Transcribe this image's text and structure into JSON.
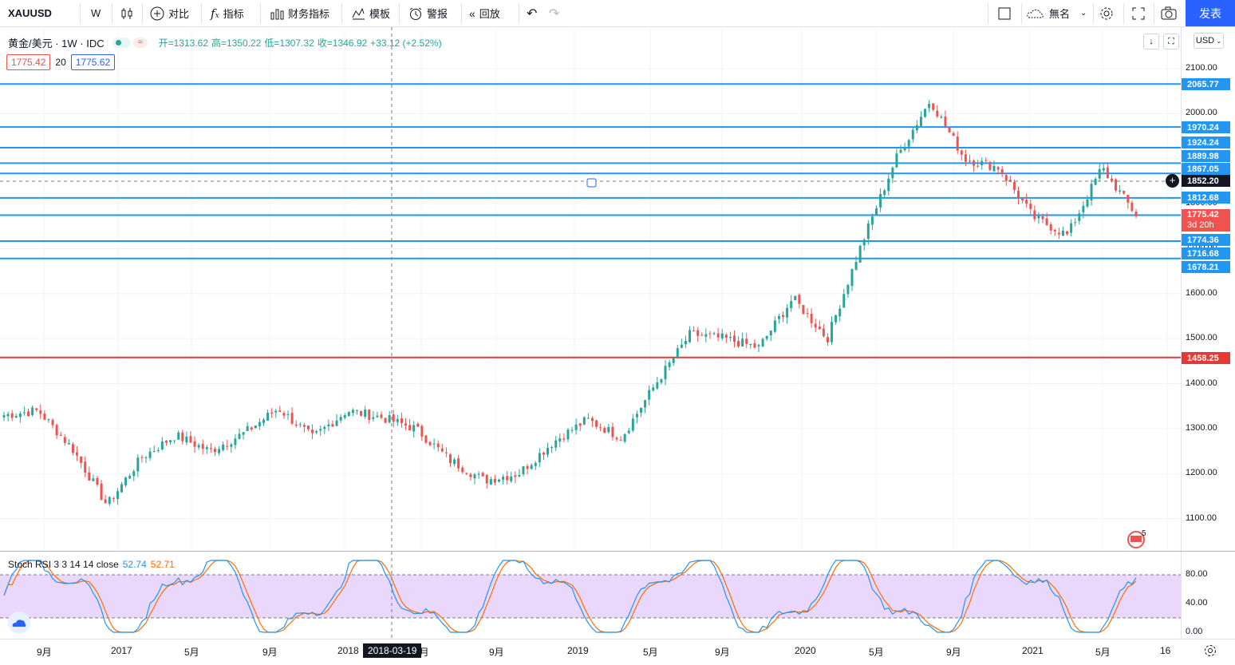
{
  "toolbar": {
    "symbol": "XAUUSD",
    "interval": "W",
    "compare_label": "对比",
    "indicators_label": "指标",
    "financials_label": "财务指标",
    "templates_label": "模板",
    "alert_label": "警报",
    "replay_label": "回放",
    "layout_name": "無名",
    "publish_label": "发表"
  },
  "legend": {
    "title": "黄金/美元 · 1W · IDC",
    "open": "开=1313.62",
    "high": "高=1350.22",
    "low": "低=1307.32",
    "close": "收=1346.92",
    "change": "+33.12 (+2.52%)",
    "bid": "1775.42",
    "spread": "20",
    "ask": "1775.62"
  },
  "currency": "USD",
  "price_ticks": [
    "2100.00",
    "2000.00",
    "1900.00",
    "1800.00",
    "1700.00",
    "1600.00",
    "1500.00",
    "1400.00",
    "1300.00",
    "1200.00",
    "1100.00"
  ],
  "hlines": [
    {
      "label": "2065.77",
      "color": "#2196f3"
    },
    {
      "label": "1970.24",
      "color": "#2196f3"
    },
    {
      "label": "1924.24",
      "color": "#2196f3"
    },
    {
      "label": "1889.98",
      "color": "#2196f3"
    },
    {
      "label": "1867.05",
      "color": "#2196f3"
    },
    {
      "label": "1812.68",
      "color": "#2196f3"
    },
    {
      "label": "1774.36",
      "color": "#2196f3"
    },
    {
      "label": "1716.68",
      "color": "#2196f3"
    },
    {
      "label": "1678.21",
      "color": "#2196f3"
    },
    {
      "label": "1458.25",
      "color": "#e53935"
    }
  ],
  "crosshair_price": "1852.20",
  "last_price": {
    "value": "1775.42",
    "countdown": "3d 20h",
    "color": "#ef5350"
  },
  "rsi": {
    "title": "Stoch RSI 3 3 14 14 close",
    "k": "52.74",
    "d": "52.71",
    "k_color": "#2196f3",
    "d_color": "#ff6d00",
    "band_color": "#e1c8fb",
    "ticks": [
      "80.00",
      "40.00",
      "0.00"
    ]
  },
  "time_labels": [
    "9月",
    "2017",
    "5月",
    "9月",
    "2018",
    "5月",
    "9月",
    "2019",
    "5月",
    "9月",
    "2020",
    "5月",
    "9月",
    "2021",
    "5月",
    "16"
  ],
  "crosshair_date": "2018-03-19",
  "events_badge": "5",
  "chart_data": {
    "type": "candlestick",
    "title": "黄金/美元 · 1W · IDC",
    "ylim": [
      1050,
      2150
    ],
    "series": [
      {
        "name": "XAUUSD",
        "values": [
          {
            "x": "2016-06",
            "close": 1330
          },
          {
            "x": "2016-08",
            "close": 1340
          },
          {
            "x": "2016-10",
            "close": 1255
          },
          {
            "x": "2016-12",
            "close": 1130
          },
          {
            "x": "2017-02",
            "close": 1235
          },
          {
            "x": "2017-04",
            "close": 1285
          },
          {
            "x": "2017-06",
            "close": 1250
          },
          {
            "x": "2017-08",
            "close": 1290
          },
          {
            "x": "2017-09",
            "close": 1345
          },
          {
            "x": "2017-11",
            "close": 1280
          },
          {
            "x": "2018-01",
            "close": 1340
          },
          {
            "x": "2018-03",
            "close": 1325
          },
          {
            "x": "2018-05",
            "close": 1300
          },
          {
            "x": "2018-07",
            "close": 1230
          },
          {
            "x": "2018-08",
            "close": 1185
          },
          {
            "x": "2018-10",
            "close": 1200
          },
          {
            "x": "2018-12",
            "close": 1270
          },
          {
            "x": "2019-02",
            "close": 1320
          },
          {
            "x": "2019-04",
            "close": 1280
          },
          {
            "x": "2019-06",
            "close": 1400
          },
          {
            "x": "2019-08",
            "close": 1510
          },
          {
            "x": "2019-10",
            "close": 1500
          },
          {
            "x": "2019-12",
            "close": 1480
          },
          {
            "x": "2020-02",
            "close": 1590
          },
          {
            "x": "2020-03",
            "close": 1500
          },
          {
            "x": "2020-05",
            "close": 1710
          },
          {
            "x": "2020-07",
            "close": 1900
          },
          {
            "x": "2020-08",
            "close": 2030
          },
          {
            "x": "2020-10",
            "close": 1900
          },
          {
            "x": "2020-12",
            "close": 1880
          },
          {
            "x": "2021-02",
            "close": 1770
          },
          {
            "x": "2021-03",
            "close": 1730
          },
          {
            "x": "2021-05",
            "close": 1880
          },
          {
            "x": "2021-06",
            "close": 1775
          }
        ]
      }
    ]
  }
}
